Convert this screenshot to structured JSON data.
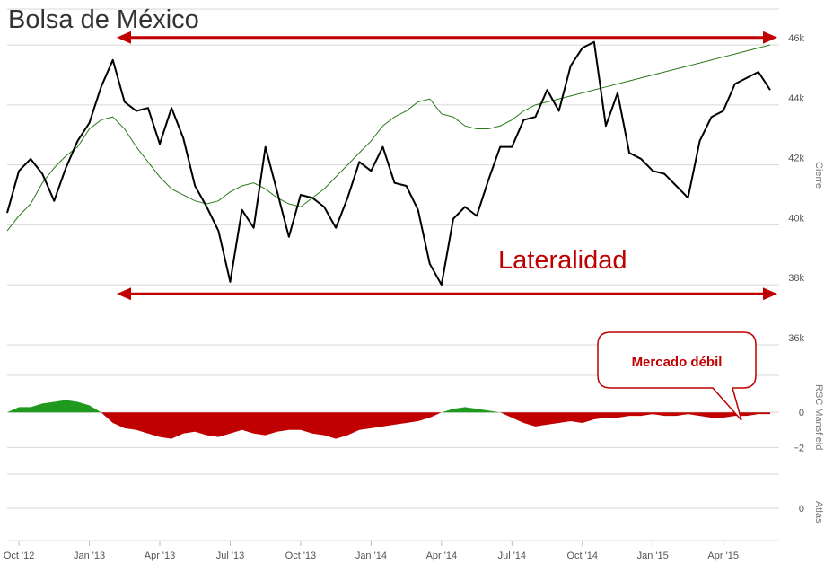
{
  "title": "Bolsa de México",
  "annotations": {
    "lateral_label": "Lateralidad",
    "callout_label": "Mercado débil"
  },
  "colors": {
    "price_line": "#000000",
    "moving_average": "#2a7a1a",
    "rsc_positive": "#1f9a1f",
    "rsc_negative": "#c00000",
    "arrow": "#c00000",
    "grid": "#d8d8d8",
    "axis_text": "#555555"
  },
  "chart_data": [
    {
      "type": "line",
      "title": "Bolsa de México",
      "ylabel": "Cierre",
      "ylim": [
        35400,
        47200
      ],
      "y_ticks": [
        36000,
        38000,
        40000,
        42000,
        44000,
        46000
      ],
      "y_tick_labels": [
        "36k",
        "38k",
        "40k",
        "42k",
        "44k",
        "46k"
      ],
      "x": [
        0,
        2,
        4,
        6,
        8,
        10,
        12,
        14,
        16,
        18,
        20,
        22,
        24,
        26,
        28,
        30,
        32,
        34,
        36,
        38,
        40,
        42,
        44,
        46,
        48,
        50,
        52,
        54,
        56,
        58,
        60,
        62,
        64,
        66,
        68,
        70,
        72,
        74,
        76,
        78,
        80,
        82,
        84,
        86,
        88,
        90,
        92,
        94,
        96,
        98,
        100,
        102,
        104,
        106,
        108,
        110,
        112,
        114,
        116,
        118,
        120,
        122,
        124,
        126,
        128,
        130
      ],
      "series": [
        {
          "values": [
            40400,
            41800,
            42200,
            41700,
            40800,
            41900,
            42800,
            43400,
            44600,
            45500,
            44100,
            43800,
            43900,
            42700,
            43900,
            42900,
            41300,
            40600,
            39800,
            38100,
            40500,
            39900,
            42600,
            41100,
            39600,
            41000,
            40900,
            40600,
            39900,
            40900,
            42100,
            41800,
            42600,
            41400,
            41300,
            40500,
            38700,
            38000,
            40200,
            40600,
            40300,
            41500,
            42600,
            42600,
            43500,
            43600,
            44500,
            43800,
            45300,
            45900,
            46100,
            43300,
            44400,
            42400,
            42200,
            41800,
            41700,
            41300,
            40900,
            42800,
            43600,
            43800,
            44700,
            44900,
            45100,
            44500
          ],
          "moving_average": [
            39800,
            40300,
            40700,
            41400,
            41900,
            42300,
            42600,
            43200,
            43500,
            43600,
            43200,
            42600,
            42100,
            41600,
            41200,
            41000,
            40800,
            40700,
            40800,
            41100,
            41300,
            41400,
            41200,
            40900,
            40700,
            40600,
            40900,
            41200,
            41600,
            42000,
            42400,
            42800,
            43300,
            43600,
            43800,
            44100,
            44200,
            43700,
            43600,
            43300,
            43200,
            43200,
            43300,
            43500,
            43800,
            44000,
            44100,
            44200,
            44300,
            44400,
            44500,
            44600,
            44700,
            44800,
            44900,
            45000,
            45100,
            45200,
            45300,
            45400,
            45500,
            45600,
            45700,
            45800,
            45900,
            46000
          ]
        }
      ],
      "reference_arrows": [
        46250,
        37700
      ]
    },
    {
      "type": "area",
      "ylabel": "RSC Mansfield",
      "ylim": [
        -3,
        2
      ],
      "y_ticks": [
        -2,
        0
      ],
      "y_tick_labels": [
        "−2",
        "0"
      ],
      "x": [
        0,
        2,
        4,
        6,
        8,
        10,
        12,
        14,
        16,
        18,
        20,
        22,
        24,
        26,
        28,
        30,
        32,
        34,
        36,
        38,
        40,
        42,
        44,
        46,
        48,
        50,
        52,
        54,
        56,
        58,
        60,
        62,
        64,
        66,
        68,
        70,
        72,
        74,
        76,
        78,
        80,
        82,
        84,
        86,
        88,
        90,
        92,
        94,
        96,
        98,
        100,
        102,
        104,
        106,
        108,
        110,
        112,
        114,
        116,
        118,
        120,
        122,
        124,
        126,
        128,
        130
      ],
      "values": [
        0,
        0.3,
        0.3,
        0.5,
        0.6,
        0.7,
        0.6,
        0.4,
        0,
        -0.6,
        -0.9,
        -1.0,
        -1.2,
        -1.4,
        -1.5,
        -1.2,
        -1.1,
        -1.3,
        -1.4,
        -1.2,
        -1.0,
        -1.2,
        -1.3,
        -1.1,
        -1.0,
        -1.0,
        -1.2,
        -1.3,
        -1.5,
        -1.3,
        -1.0,
        -0.9,
        -0.8,
        -0.7,
        -0.6,
        -0.5,
        -0.3,
        0,
        0.2,
        0.3,
        0.2,
        0.1,
        0,
        -0.3,
        -0.6,
        -0.8,
        -0.7,
        -0.6,
        -0.5,
        -0.6,
        -0.4,
        -0.3,
        -0.3,
        -0.2,
        -0.2,
        -0.1,
        -0.2,
        -0.2,
        -0.1,
        -0.2,
        -0.3,
        -0.3,
        -0.2,
        -0.2,
        -0.1,
        -0.1
      ]
    },
    {
      "type": "line",
      "ylabel": "Atlas",
      "y_ticks": [
        0
      ],
      "y_tick_labels": [
        "0"
      ],
      "x_tick_labels": [
        "Oct '12",
        "Jan '13",
        "Apr '13",
        "Jul '13",
        "Oct '13",
        "Jan '14",
        "Apr '14",
        "Jul '14",
        "Oct '14",
        "Jan '15",
        "Apr '15"
      ]
    }
  ]
}
